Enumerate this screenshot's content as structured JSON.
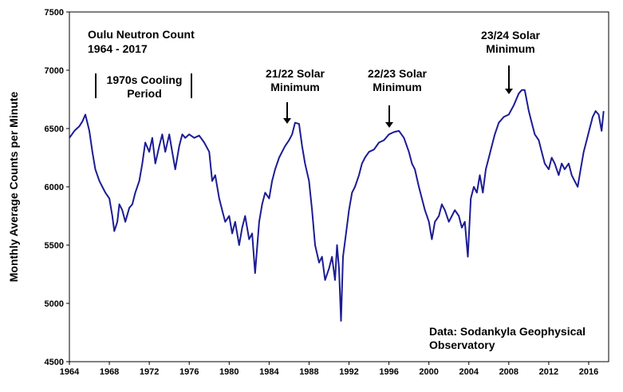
{
  "chart_data": {
    "type": "line",
    "title": [
      "Oulu Neutron Count",
      "1964 - 2017"
    ],
    "y_label": "Monthly Average Counts per Minute",
    "annotations": [
      [
        "1970s Cooling",
        "Period"
      ],
      [
        "21/22 Solar",
        "Minimum"
      ],
      [
        "22/23 Solar",
        "Minimum"
      ],
      [
        "23/24 Solar",
        "Minimum"
      ],
      [
        "Data:  Sodankyla Geophysical",
        "Observatory"
      ]
    ],
    "color": "#1c1c94",
    "xlim": [
      1964,
      2018
    ],
    "xticks": [
      1964,
      1968,
      1972,
      1976,
      1980,
      1984,
      1988,
      1992,
      1996,
      2000,
      2004,
      2008,
      2012,
      2016
    ],
    "ylim": [
      4500,
      7500
    ],
    "yticks": [
      4500,
      5000,
      5500,
      6000,
      6500,
      7000,
      7500
    ],
    "x": [
      1964.0,
      1964.5,
      1965.0,
      1965.3,
      1965.6,
      1966.0,
      1966.3,
      1966.6,
      1967.0,
      1967.3,
      1967.6,
      1968.0,
      1968.3,
      1968.5,
      1968.8,
      1969.0,
      1969.3,
      1969.6,
      1970.0,
      1970.3,
      1970.6,
      1971.0,
      1971.3,
      1971.6,
      1972.0,
      1972.3,
      1972.6,
      1973.0,
      1973.3,
      1973.6,
      1974.0,
      1974.3,
      1974.6,
      1975.0,
      1975.3,
      1975.6,
      1976.0,
      1976.5,
      1977.0,
      1977.5,
      1978.0,
      1978.3,
      1978.6,
      1979.0,
      1979.3,
      1979.6,
      1980.0,
      1980.3,
      1980.6,
      1981.0,
      1981.3,
      1981.6,
      1982.0,
      1982.3,
      1982.6,
      1983.0,
      1983.3,
      1983.6,
      1984.0,
      1984.3,
      1984.6,
      1985.0,
      1985.3,
      1985.6,
      1986.0,
      1986.3,
      1986.6,
      1987.0,
      1987.3,
      1987.6,
      1988.0,
      1988.3,
      1988.6,
      1989.0,
      1989.3,
      1989.6,
      1990.0,
      1990.3,
      1990.6,
      1990.8,
      1991.0,
      1991.2,
      1991.4,
      1991.7,
      1992.0,
      1992.3,
      1992.6,
      1993.0,
      1993.3,
      1993.6,
      1994.0,
      1994.5,
      1995.0,
      1995.5,
      1996.0,
      1996.5,
      1997.0,
      1997.5,
      1998.0,
      1998.3,
      1998.6,
      1999.0,
      1999.3,
      1999.6,
      2000.0,
      2000.3,
      2000.6,
      2001.0,
      2001.3,
      2001.6,
      2002.0,
      2002.3,
      2002.6,
      2003.0,
      2003.3,
      2003.6,
      2003.9,
      2004.2,
      2004.5,
      2004.8,
      2005.1,
      2005.4,
      2005.7,
      2006.0,
      2006.3,
      2006.6,
      2007.0,
      2007.5,
      2008.0,
      2008.5,
      2009.0,
      2009.3,
      2009.6,
      2010.0,
      2010.3,
      2010.6,
      2011.0,
      2011.3,
      2011.6,
      2012.0,
      2012.3,
      2012.6,
      2013.0,
      2013.3,
      2013.6,
      2014.0,
      2014.3,
      2014.6,
      2014.9,
      2015.2,
      2015.5,
      2015.8,
      2016.1,
      2016.4,
      2016.7,
      2017.0,
      2017.3,
      2017.5
    ],
    "values": [
      6420,
      6480,
      6520,
      6560,
      6620,
      6480,
      6300,
      6150,
      6050,
      6000,
      5950,
      5900,
      5750,
      5620,
      5700,
      5850,
      5800,
      5700,
      5820,
      5850,
      5950,
      6050,
      6200,
      6380,
      6300,
      6420,
      6200,
      6350,
      6450,
      6300,
      6450,
      6300,
      6150,
      6350,
      6450,
      6420,
      6450,
      6420,
      6440,
      6380,
      6300,
      6050,
      6100,
      5900,
      5800,
      5700,
      5750,
      5600,
      5700,
      5500,
      5650,
      5750,
      5550,
      5600,
      5260,
      5700,
      5850,
      5950,
      5900,
      6050,
      6150,
      6250,
      6300,
      6350,
      6400,
      6450,
      6550,
      6540,
      6350,
      6200,
      6050,
      5800,
      5500,
      5350,
      5400,
      5200,
      5300,
      5400,
      5200,
      5500,
      5300,
      4850,
      5400,
      5600,
      5800,
      5950,
      6000,
      6100,
      6200,
      6250,
      6300,
      6320,
      6380,
      6400,
      6450,
      6470,
      6480,
      6420,
      6300,
      6200,
      6150,
      6000,
      5900,
      5800,
      5700,
      5550,
      5700,
      5750,
      5850,
      5800,
      5700,
      5750,
      5800,
      5750,
      5650,
      5700,
      5400,
      5900,
      6000,
      5950,
      6100,
      5950,
      6150,
      6250,
      6350,
      6450,
      6550,
      6600,
      6620,
      6700,
      6800,
      6830,
      6830,
      6650,
      6550,
      6450,
      6400,
      6300,
      6200,
      6150,
      6250,
      6200,
      6100,
      6200,
      6150,
      6200,
      6100,
      6050,
      6000,
      6150,
      6300,
      6400,
      6500,
      6600,
      6650,
      6620,
      6480,
      6650
    ]
  }
}
